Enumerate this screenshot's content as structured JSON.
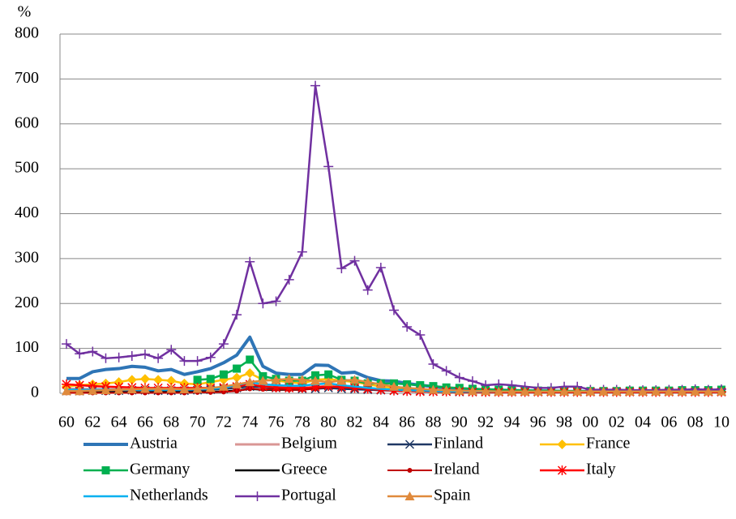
{
  "chart_data": {
    "type": "line",
    "y_label": "%",
    "categories": [
      "60",
      null,
      "62",
      null,
      "64",
      null,
      "66",
      null,
      "68",
      null,
      "70",
      null,
      "72",
      null,
      "74",
      null,
      "76",
      null,
      "78",
      null,
      "80",
      null,
      "82",
      null,
      "84",
      null,
      "86",
      null,
      "88",
      null,
      "90",
      null,
      "92",
      null,
      "94",
      null,
      "96",
      null,
      "98",
      null,
      "00",
      null,
      "02",
      null,
      "04",
      null,
      "06",
      null,
      "08",
      null,
      "10"
    ],
    "ylim": [
      0,
      800
    ],
    "yticks": [
      0,
      100,
      200,
      300,
      400,
      500,
      600,
      700,
      800
    ],
    "grid": true,
    "legend": "bottom",
    "series": [
      {
        "name": "Austria",
        "color": "#2e75b6",
        "line_width": 4,
        "marker": "none",
        "values": [
          33,
          33,
          48,
          53,
          55,
          60,
          58,
          50,
          53,
          42,
          48,
          55,
          68,
          85,
          125,
          60,
          45,
          42,
          42,
          63,
          62,
          45,
          47,
          35,
          28,
          27,
          22,
          18,
          15,
          12,
          10,
          9,
          8,
          7,
          6,
          5,
          5,
          5,
          4,
          4,
          4,
          5,
          5,
          5,
          5,
          5,
          5,
          5,
          6,
          6,
          7
        ]
      },
      {
        "name": "Belgium",
        "color": "#d99694",
        "line_width": 3,
        "marker": "none",
        "values": [
          10,
          10,
          9,
          9,
          9,
          8,
          8,
          8,
          8,
          8,
          9,
          10,
          12,
          14,
          18,
          15,
          14,
          13,
          12,
          13,
          14,
          12,
          11,
          9,
          7,
          6,
          5,
          5,
          4,
          4,
          4,
          4,
          3,
          3,
          3,
          3,
          3,
          3,
          3,
          3,
          3,
          3,
          3,
          3,
          3,
          3,
          3,
          3,
          3,
          3,
          3
        ]
      },
      {
        "name": "Finland",
        "color": "#1f3864",
        "line_width": 2.5,
        "marker": "x",
        "values": [
          5,
          5,
          6,
          6,
          6,
          7,
          7,
          6,
          6,
          6,
          7,
          8,
          10,
          12,
          15,
          14,
          12,
          12,
          10,
          10,
          12,
          10,
          9,
          8,
          7,
          6,
          5,
          5,
          4,
          4,
          3,
          3,
          3,
          3,
          3,
          3,
          3,
          3,
          3,
          3,
          3,
          3,
          3,
          3,
          3,
          3,
          3,
          3,
          3,
          3,
          3
        ]
      },
      {
        "name": "France",
        "color": "#ffc000",
        "line_width": 2.5,
        "marker": "diamond",
        "values": [
          15,
          18,
          20,
          22,
          25,
          30,
          32,
          30,
          28,
          22,
          20,
          25,
          30,
          35,
          45,
          30,
          28,
          25,
          22,
          30,
          32,
          28,
          25,
          20,
          15,
          12,
          10,
          8,
          7,
          6,
          5,
          5,
          4,
          4,
          4,
          4,
          4,
          4,
          4,
          4,
          4,
          4,
          4,
          4,
          4,
          4,
          4,
          4,
          4,
          4,
          4
        ]
      },
      {
        "name": "Germany",
        "color": "#00b050",
        "line_width": 2.5,
        "marker": "square",
        "values": [
          null,
          null,
          null,
          null,
          null,
          null,
          null,
          null,
          null,
          null,
          30,
          32,
          42,
          55,
          75,
          38,
          32,
          28,
          28,
          40,
          42,
          30,
          28,
          22,
          22,
          22,
          20,
          18,
          16,
          13,
          12,
          10,
          9,
          8,
          7,
          7,
          6,
          6,
          5,
          5,
          5,
          5,
          5,
          6,
          6,
          6,
          6,
          7,
          7,
          7,
          8
        ]
      },
      {
        "name": "Greece",
        "color": "#000000",
        "line_width": 2.5,
        "marker": "none",
        "values": [
          2,
          2,
          2,
          2,
          2,
          2,
          2,
          2,
          2,
          2,
          3,
          3,
          4,
          6,
          10,
          8,
          8,
          8,
          8,
          12,
          15,
          14,
          12,
          10,
          9,
          8,
          7,
          6,
          5,
          4,
          4,
          4,
          4,
          4,
          4,
          4,
          4,
          4,
          4,
          4,
          4,
          4,
          4,
          4,
          4,
          4,
          4,
          4,
          4,
          4,
          4
        ]
      },
      {
        "name": "Ireland",
        "color": "#c00000",
        "line_width": 2,
        "marker": "dot",
        "values": [
          1,
          1,
          1,
          1,
          1,
          1,
          1,
          1,
          1,
          1,
          2,
          2,
          3,
          5,
          10,
          9,
          9,
          8,
          8,
          10,
          14,
          13,
          12,
          10,
          8,
          6,
          5,
          4,
          3,
          3,
          2,
          2,
          2,
          2,
          2,
          2,
          2,
          2,
          2,
          2,
          2,
          2,
          2,
          2,
          2,
          2,
          2,
          2,
          2,
          2,
          2
        ]
      },
      {
        "name": "Italy",
        "color": "#ff0000",
        "line_width": 2.5,
        "marker": "asterisk",
        "values": [
          20,
          18,
          16,
          15,
          14,
          13,
          12,
          12,
          12,
          12,
          12,
          12,
          13,
          15,
          20,
          15,
          13,
          12,
          12,
          14,
          16,
          14,
          12,
          10,
          8,
          6,
          5,
          4,
          4,
          4,
          4,
          3,
          3,
          3,
          3,
          3,
          3,
          3,
          3,
          3,
          3,
          3,
          3,
          3,
          3,
          3,
          3,
          3,
          3,
          3,
          3
        ]
      },
      {
        "name": "Netherlands",
        "color": "#00b0f0",
        "line_width": 2.5,
        "marker": "none",
        "values": [
          8,
          8,
          8,
          8,
          8,
          8,
          8,
          8,
          8,
          8,
          9,
          10,
          12,
          18,
          25,
          20,
          18,
          17,
          17,
          20,
          22,
          18,
          15,
          12,
          10,
          8,
          7,
          6,
          5,
          4,
          4,
          4,
          4,
          4,
          4,
          4,
          4,
          4,
          4,
          4,
          4,
          4,
          4,
          4,
          4,
          4,
          4,
          4,
          4,
          4,
          4
        ]
      },
      {
        "name": "Portugal",
        "color": "#7030a0",
        "line_width": 2.5,
        "marker": "plus",
        "values": [
          110,
          88,
          93,
          78,
          80,
          83,
          87,
          78,
          97,
          72,
          72,
          80,
          110,
          175,
          293,
          200,
          205,
          253,
          315,
          685,
          505,
          278,
          295,
          230,
          280,
          185,
          148,
          130,
          65,
          50,
          35,
          27,
          18,
          20,
          18,
          15,
          12,
          12,
          15,
          15,
          8,
          8,
          8,
          7,
          7,
          7,
          8,
          8,
          9,
          8,
          9
        ]
      },
      {
        "name": "Spain",
        "color": "#e08a3c",
        "line_width": 2.5,
        "marker": "triangle",
        "values": [
          5,
          5,
          6,
          7,
          8,
          9,
          10,
          10,
          10,
          9,
          10,
          12,
          15,
          20,
          25,
          28,
          30,
          32,
          30,
          28,
          25,
          28,
          30,
          25,
          20,
          15,
          12,
          10,
          8,
          7,
          6,
          5,
          5,
          4,
          4,
          4,
          4,
          4,
          4,
          4,
          4,
          4,
          4,
          4,
          4,
          4,
          4,
          4,
          4,
          4,
          4
        ]
      }
    ]
  }
}
